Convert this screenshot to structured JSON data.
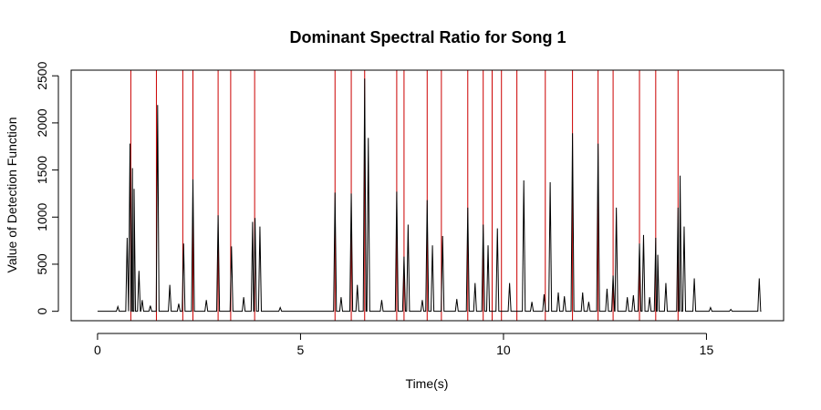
{
  "chart_data": {
    "type": "line",
    "title": "Dominant Spectral Ratio for Song 1",
    "xlabel": "Time(s)",
    "ylabel": "Value of Detection Function",
    "xlim": [
      -0.65,
      16.9
    ],
    "ylim": [
      -100,
      2560
    ],
    "x_ticks": [
      0,
      5,
      10,
      15
    ],
    "y_ticks": [
      0,
      500,
      1000,
      1500,
      2000,
      2500
    ],
    "grid": false,
    "line_color": "#000000",
    "onset_color": "#cc0000",
    "onsets": [
      0.82,
      1.45,
      2.1,
      2.35,
      2.97,
      3.28,
      3.87,
      5.85,
      6.25,
      6.58,
      7.37,
      7.55,
      8.12,
      8.47,
      9.12,
      9.5,
      9.72,
      9.95,
      10.33,
      11.03,
      11.7,
      12.33,
      12.7,
      13.35,
      13.75,
      14.3
    ],
    "series": [
      {
        "peaks": [
          [
            0.5,
            50
          ],
          [
            0.73,
            780
          ],
          [
            0.8,
            1780
          ],
          [
            0.86,
            1520
          ],
          [
            0.9,
            1300
          ],
          [
            1.02,
            430
          ],
          [
            1.1,
            120
          ],
          [
            1.3,
            60
          ],
          [
            1.48,
            2190
          ],
          [
            1.78,
            280
          ],
          [
            2.0,
            80
          ],
          [
            2.12,
            720
          ],
          [
            2.35,
            1400
          ],
          [
            2.68,
            120
          ],
          [
            2.97,
            1020
          ],
          [
            3.3,
            690
          ],
          [
            3.6,
            150
          ],
          [
            3.82,
            950
          ],
          [
            3.88,
            990
          ],
          [
            4.0,
            900
          ],
          [
            4.5,
            40
          ],
          [
            5.85,
            1260
          ],
          [
            6.0,
            150
          ],
          [
            6.25,
            1250
          ],
          [
            6.4,
            280
          ],
          [
            6.58,
            2470
          ],
          [
            6.67,
            1840
          ],
          [
            7.0,
            120
          ],
          [
            7.37,
            1270
          ],
          [
            7.55,
            580
          ],
          [
            7.65,
            920
          ],
          [
            8.0,
            120
          ],
          [
            8.12,
            1180
          ],
          [
            8.25,
            700
          ],
          [
            8.5,
            800
          ],
          [
            8.85,
            130
          ],
          [
            9.12,
            1100
          ],
          [
            9.3,
            300
          ],
          [
            9.5,
            920
          ],
          [
            9.62,
            700
          ],
          [
            9.85,
            880
          ],
          [
            10.15,
            300
          ],
          [
            10.5,
            1390
          ],
          [
            10.7,
            100
          ],
          [
            11.0,
            180
          ],
          [
            11.15,
            1370
          ],
          [
            11.35,
            200
          ],
          [
            11.5,
            160
          ],
          [
            11.7,
            1890
          ],
          [
            11.95,
            200
          ],
          [
            12.1,
            100
          ],
          [
            12.33,
            1780
          ],
          [
            12.55,
            240
          ],
          [
            12.7,
            380
          ],
          [
            12.78,
            1100
          ],
          [
            13.05,
            150
          ],
          [
            13.2,
            170
          ],
          [
            13.35,
            720
          ],
          [
            13.45,
            810
          ],
          [
            13.6,
            150
          ],
          [
            13.75,
            780
          ],
          [
            13.8,
            600
          ],
          [
            14.0,
            300
          ],
          [
            14.3,
            1100
          ],
          [
            14.35,
            1440
          ],
          [
            14.45,
            900
          ],
          [
            14.7,
            350
          ],
          [
            15.1,
            40
          ],
          [
            15.6,
            20
          ],
          [
            16.3,
            350
          ]
        ]
      }
    ]
  }
}
